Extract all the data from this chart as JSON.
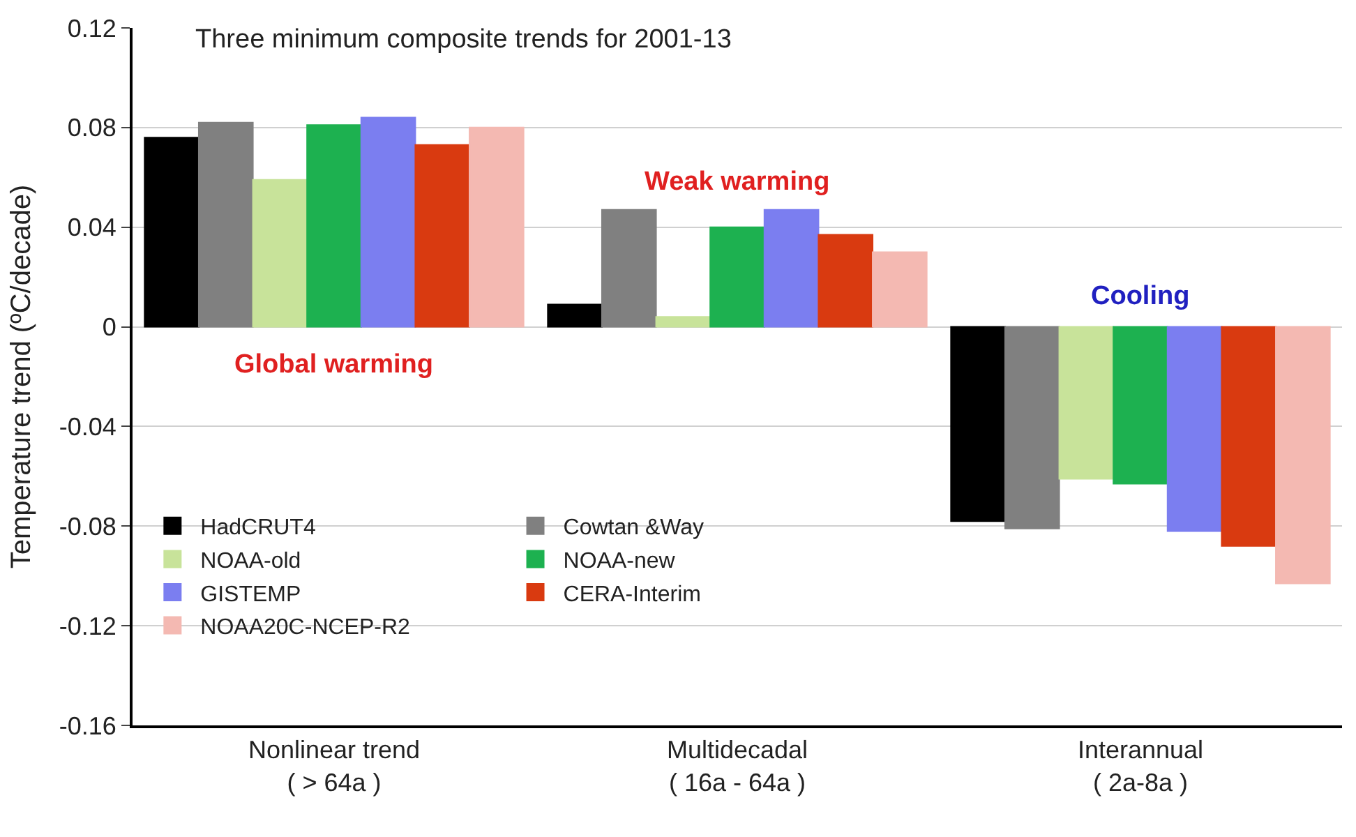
{
  "chart_data": {
    "type": "bar",
    "title": "Three minimum composite trends for 2001-13",
    "ylabel": "Temperature trend (ºC/decade)",
    "categories": [
      "Nonlinear trend\n( > 64a )",
      "Multidecadal\n( 16a - 64a )",
      "Interannual\n( 2a-8a )"
    ],
    "series": [
      {
        "name": "HadCRUT4",
        "color": "#000000",
        "values": [
          0.076,
          0.009,
          -0.078
        ]
      },
      {
        "name": "Cowtan &Way",
        "color": "#808080",
        "values": [
          0.082,
          0.047,
          -0.081
        ]
      },
      {
        "name": "NOAA-old",
        "color": "#c8e39a",
        "values": [
          0.059,
          0.004,
          -0.061
        ]
      },
      {
        "name": "NOAA-new",
        "color": "#1db150",
        "values": [
          0.081,
          0.04,
          -0.063
        ]
      },
      {
        "name": "GISTEMP",
        "color": "#7b7ef0",
        "values": [
          0.084,
          0.047,
          -0.082
        ]
      },
      {
        "name": "CERA-Interim",
        "color": "#d93a10",
        "values": [
          0.073,
          0.037,
          -0.088
        ]
      },
      {
        "name": "NOAA20C-NCEP-R2",
        "color": "#f4b9b2",
        "values": [
          0.08,
          0.03,
          -0.103
        ]
      }
    ],
    "ylim": [
      -0.16,
      0.12
    ],
    "yticks": [
      -0.16,
      -0.12,
      -0.08,
      -0.04,
      0,
      0.04,
      0.08,
      0.12
    ],
    "grid": "y",
    "legend": "bottom left",
    "annotations": [
      "Global warming",
      "Weak warming",
      "Cooling"
    ]
  }
}
